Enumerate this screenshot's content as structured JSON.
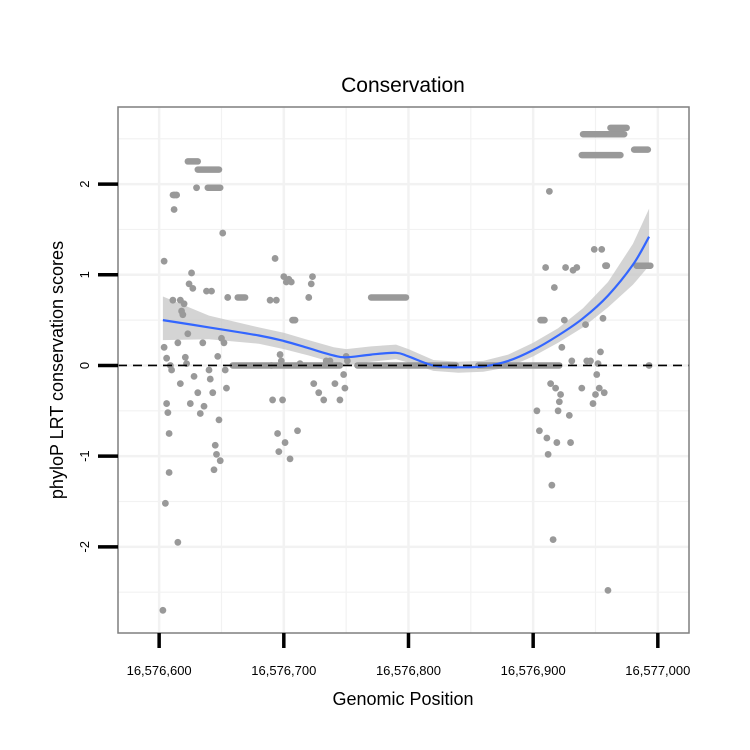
{
  "chart_data": {
    "type": "scatter",
    "title": "Conservation",
    "xlabel": "Genomic Position",
    "ylabel": "phyloP LRT conservation scores",
    "xlim": [
      16576567,
      16577025
    ],
    "ylim": [
      -2.95,
      2.85
    ],
    "x_ticks": [
      16576600,
      16576700,
      16576800,
      16576900,
      16577000
    ],
    "x_tick_labels": [
      "16,576,600",
      "16,576,700",
      "16,576,800",
      "16,576,900",
      "16,577,000"
    ],
    "y_ticks": [
      -2,
      -1,
      0,
      1,
      2
    ],
    "y_tick_labels": [
      "-2",
      "-1",
      "0",
      "1",
      "2"
    ],
    "grid": true,
    "colors": {
      "points": "#999999",
      "smooth_line": "#3366FF",
      "confidence_band": "#C6C6C6",
      "grid": "#F2F2F2",
      "panel_border": "#7F7F7F",
      "reference_line": "#000000"
    },
    "reference_line_y": 0,
    "series": [
      {
        "name": "phyloP LRT score",
        "kind": "points",
        "points": [
          [
            16576603,
            -2.7
          ],
          [
            16576604,
            1.15
          ],
          [
            16576604,
            0.2
          ],
          [
            16576605,
            -1.52
          ],
          [
            16576606,
            0.08
          ],
          [
            16576606,
            -0.42
          ],
          [
            16576607,
            -0.52
          ],
          [
            16576608,
            -1.18
          ],
          [
            16576608,
            -0.75
          ],
          [
            16576609,
            0.0
          ],
          [
            16576610,
            -0.05
          ],
          [
            16576611,
            0.72
          ],
          [
            16576612,
            1.88
          ],
          [
            16576612,
            1.72
          ],
          [
            16576614,
            1.88
          ],
          [
            16576615,
            -1.95
          ],
          [
            16576615,
            0.25
          ],
          [
            16576617,
            -0.2
          ],
          [
            16576617,
            0.72
          ],
          [
            16576618,
            0.6
          ],
          [
            16576619,
            0.56
          ],
          [
            16576620,
            0.68
          ],
          [
            16576621,
            0.09
          ],
          [
            16576622,
            0.02
          ],
          [
            16576623,
            0.35
          ],
          [
            16576624,
            0.9
          ],
          [
            16576625,
            -0.42
          ],
          [
            16576626,
            1.02
          ],
          [
            16576627,
            0.85
          ],
          [
            16576628,
            -0.12
          ],
          [
            16576630,
            1.96
          ],
          [
            16576631,
            -0.3
          ],
          [
            16576633,
            -0.53
          ],
          [
            16576635,
            0.25
          ],
          [
            16576636,
            -0.45
          ],
          [
            16576638,
            0.82
          ],
          [
            16576640,
            -0.05
          ],
          [
            16576641,
            -0.15
          ],
          [
            16576642,
            0.82
          ],
          [
            16576643,
            -0.3
          ],
          [
            16576644,
            -1.15
          ],
          [
            16576645,
            -0.88
          ],
          [
            16576646,
            -0.98
          ],
          [
            16576647,
            0.1
          ],
          [
            16576648,
            -0.6
          ],
          [
            16576649,
            -1.05
          ],
          [
            16576650,
            0.3
          ],
          [
            16576651,
            1.46
          ],
          [
            16576652,
            0.25
          ],
          [
            16576653,
            -0.05
          ],
          [
            16576654,
            -0.25
          ],
          [
            16576655,
            0.75
          ],
          [
            16576689,
            0.72
          ],
          [
            16576690,
            0.0
          ],
          [
            16576691,
            -0.38
          ],
          [
            16576693,
            1.18
          ],
          [
            16576694,
            0.72
          ],
          [
            16576695,
            -0.75
          ],
          [
            16576696,
            -0.95
          ],
          [
            16576697,
            0.12
          ],
          [
            16576698,
            0.05
          ],
          [
            16576699,
            -0.38
          ],
          [
            16576700,
            0.98
          ],
          [
            16576701,
            -0.85
          ],
          [
            16576702,
            0.92
          ],
          [
            16576704,
            0.95
          ],
          [
            16576705,
            -1.03
          ],
          [
            16576706,
            0.92
          ],
          [
            16576707,
            0.5
          ],
          [
            16576708,
            0.5
          ],
          [
            16576709,
            0.5
          ],
          [
            16576711,
            -0.72
          ],
          [
            16576713,
            0.02
          ],
          [
            16576720,
            0.75
          ],
          [
            16576722,
            0.9
          ],
          [
            16576723,
            0.98
          ],
          [
            16576724,
            -0.2
          ],
          [
            16576728,
            -0.3
          ],
          [
            16576732,
            -0.38
          ],
          [
            16576734,
            0.05
          ],
          [
            16576737,
            0.05
          ],
          [
            16576741,
            -0.2
          ],
          [
            16576745,
            -0.38
          ],
          [
            16576748,
            -0.1
          ],
          [
            16576749,
            -0.25
          ],
          [
            16576750,
            0.1
          ],
          [
            16576751,
            0.05
          ],
          [
            16576903,
            -0.5
          ],
          [
            16576905,
            -0.72
          ],
          [
            16576906,
            0.5
          ],
          [
            16576907,
            0.5
          ],
          [
            16576908,
            0.5
          ],
          [
            16576909,
            0.5
          ],
          [
            16576910,
            1.08
          ],
          [
            16576911,
            -0.8
          ],
          [
            16576912,
            -0.98
          ],
          [
            16576913,
            1.92
          ],
          [
            16576914,
            -0.2
          ],
          [
            16576915,
            -1.32
          ],
          [
            16576916,
            -1.92
          ],
          [
            16576917,
            0.86
          ],
          [
            16576918,
            -0.25
          ],
          [
            16576919,
            -0.85
          ],
          [
            16576920,
            -0.5
          ],
          [
            16576921,
            -0.4
          ],
          [
            16576922,
            -0.32
          ],
          [
            16576923,
            0.2
          ],
          [
            16576925,
            0.5
          ],
          [
            16576926,
            1.08
          ],
          [
            16576929,
            -0.55
          ],
          [
            16576930,
            -0.85
          ],
          [
            16576931,
            0.05
          ],
          [
            16576932,
            1.05
          ],
          [
            16576935,
            1.08
          ],
          [
            16576939,
            -0.25
          ],
          [
            16576942,
            0.45
          ],
          [
            16576943,
            0.05
          ],
          [
            16576946,
            0.05
          ],
          [
            16576948,
            -0.42
          ],
          [
            16576949,
            1.28
          ],
          [
            16576950,
            -0.32
          ],
          [
            16576951,
            -0.1
          ],
          [
            16576952,
            0.02
          ],
          [
            16576953,
            -0.25
          ],
          [
            16576954,
            0.15
          ],
          [
            16576955,
            1.28
          ],
          [
            16576956,
            0.52
          ],
          [
            16576957,
            -0.3
          ],
          [
            16576958,
            1.1
          ],
          [
            16576959,
            1.1
          ],
          [
            16576960,
            -2.48
          ],
          [
            16576993,
            0.0
          ]
        ],
        "runs": [
          {
            "y": 1.88,
            "x_start": 16576611,
            "x_end": 16576614
          },
          {
            "y": 2.25,
            "x_start": 16576623,
            "x_end": 16576631
          },
          {
            "y": 2.16,
            "x_start": 16576631,
            "x_end": 16576648
          },
          {
            "y": 1.96,
            "x_start": 16576639,
            "x_end": 16576649
          },
          {
            "y": 0.75,
            "x_start": 16576663,
            "x_end": 16576669
          },
          {
            "y": 0.0,
            "x_start": 16576659,
            "x_end": 16576745
          },
          {
            "y": 0.0,
            "x_start": 16576759,
            "x_end": 16576838
          },
          {
            "y": 0.75,
            "x_start": 16576770,
            "x_end": 16576798
          },
          {
            "y": 0.0,
            "x_start": 16576856,
            "x_end": 16576921
          },
          {
            "y": 2.55,
            "x_start": 16576940,
            "x_end": 16576973
          },
          {
            "y": 2.32,
            "x_start": 16576939,
            "x_end": 16576970
          },
          {
            "y": 2.62,
            "x_start": 16576962,
            "x_end": 16576975
          },
          {
            "y": 2.38,
            "x_start": 16576981,
            "x_end": 16576992
          },
          {
            "y": 1.1,
            "x_start": 16576983,
            "x_end": 16576994
          }
        ]
      },
      {
        "name": "loess smooth",
        "kind": "line",
        "x": [
          16576603,
          16576640,
          16576680,
          16576700,
          16576720,
          16576740,
          16576750,
          16576770,
          16576790,
          16576800,
          16576820,
          16576840,
          16576860,
          16576880,
          16576900,
          16576920,
          16576940,
          16576960,
          16576980,
          16576993
        ],
        "y": [
          0.5,
          0.42,
          0.33,
          0.27,
          0.19,
          0.11,
          0.09,
          0.12,
          0.14,
          0.1,
          0.0,
          -0.02,
          -0.01,
          0.05,
          0.17,
          0.33,
          0.52,
          0.77,
          1.11,
          1.42
        ],
        "lower": [
          0.28,
          0.29,
          0.24,
          0.18,
          0.11,
          0.03,
          0.0,
          0.04,
          0.07,
          0.03,
          -0.06,
          -0.08,
          -0.07,
          -0.02,
          0.1,
          0.25,
          0.42,
          0.64,
          0.89,
          1.1
        ],
        "upper": [
          0.76,
          0.55,
          0.42,
          0.36,
          0.28,
          0.2,
          0.18,
          0.21,
          0.23,
          0.18,
          0.06,
          0.04,
          0.05,
          0.12,
          0.25,
          0.41,
          0.63,
          0.92,
          1.34,
          1.73
        ]
      }
    ]
  }
}
